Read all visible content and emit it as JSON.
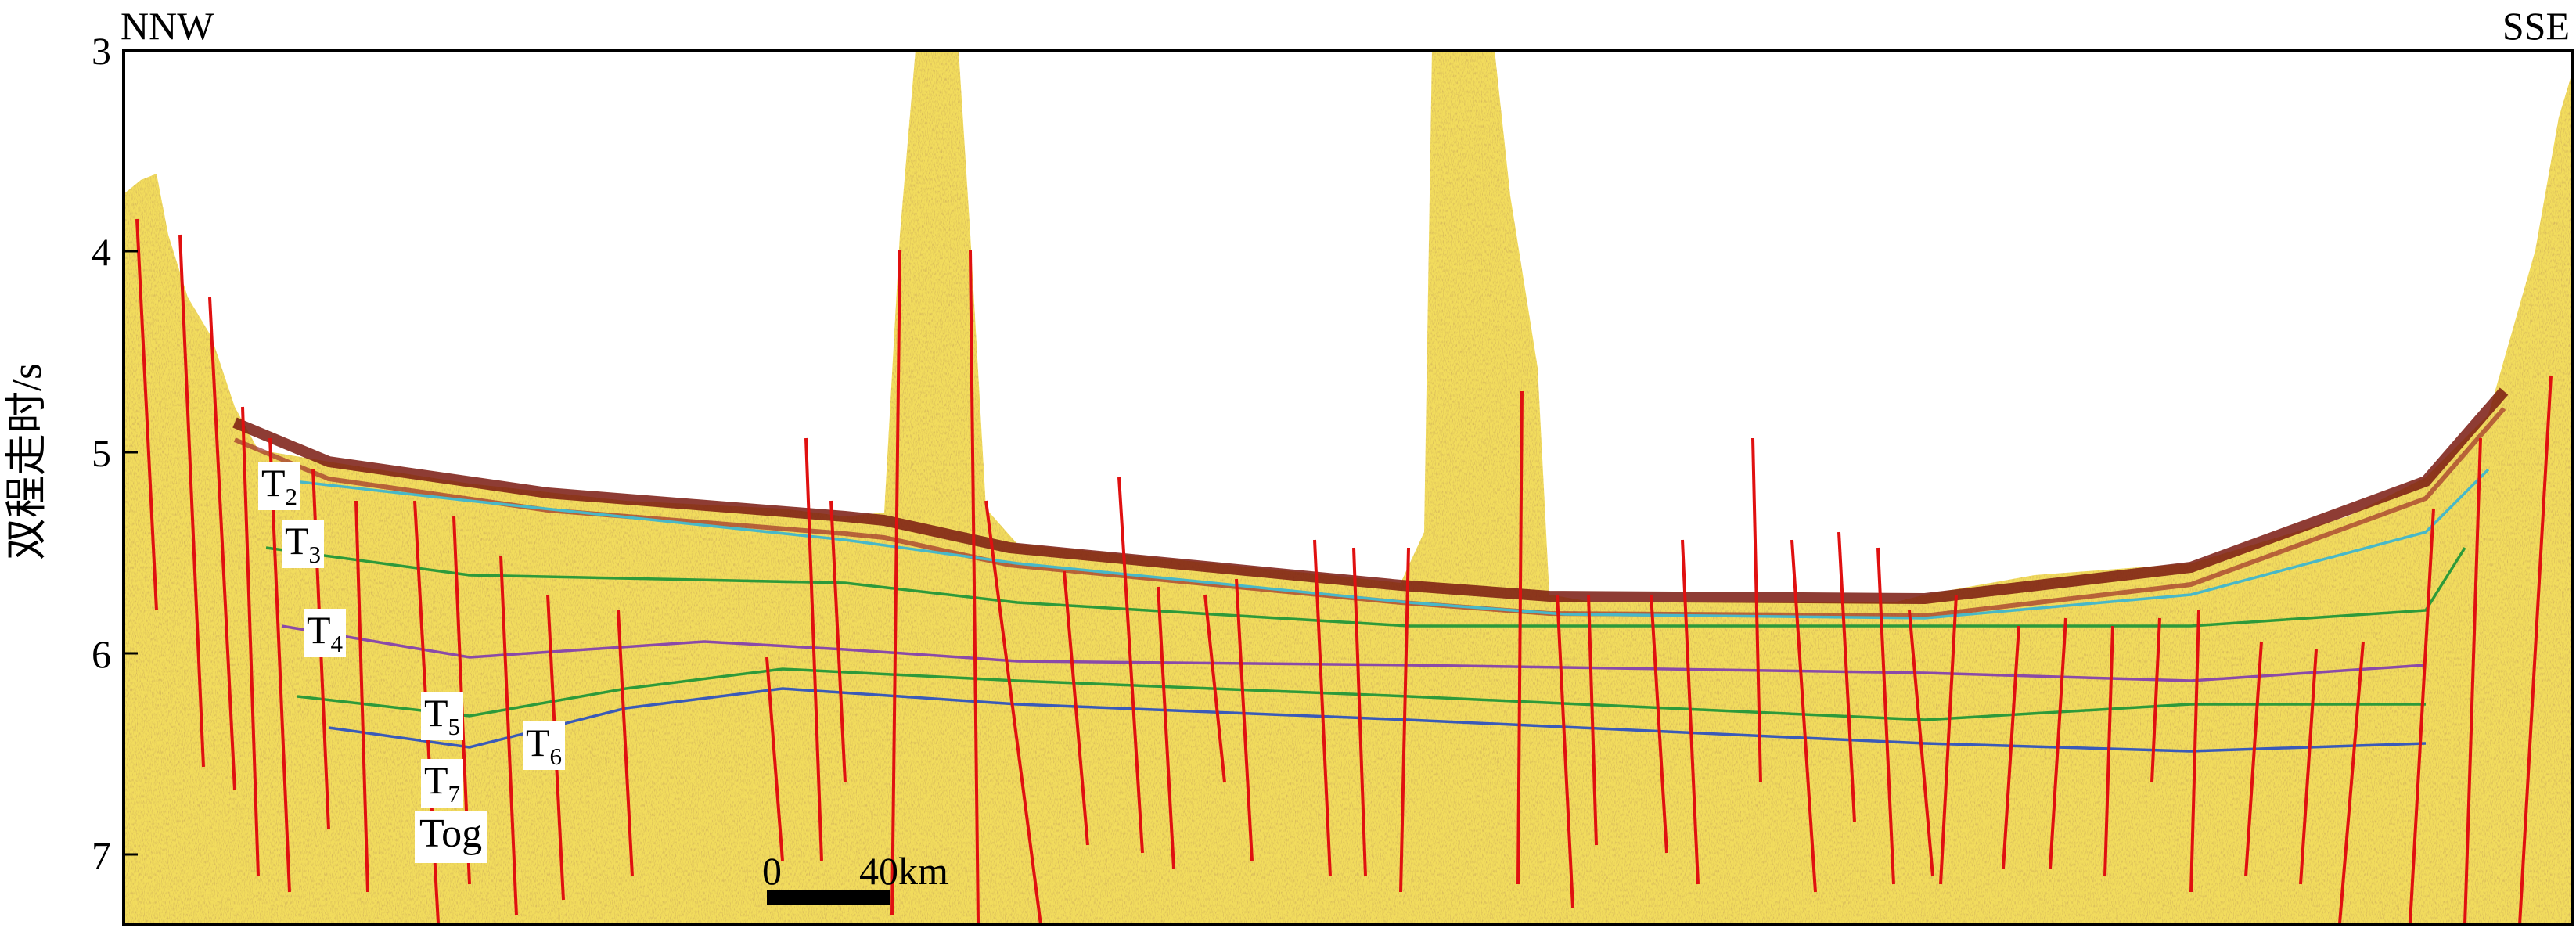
{
  "header": {
    "left_direction": "NNW",
    "right_direction": "SSE"
  },
  "y_axis": {
    "label": "双程走时/s",
    "ticks": [
      "3",
      "4",
      "5",
      "6",
      "7"
    ],
    "range": [
      3,
      7.35
    ]
  },
  "horizons": [
    {
      "id": "t2",
      "main": "T",
      "sub": "2"
    },
    {
      "id": "t3",
      "main": "T",
      "sub": "3"
    },
    {
      "id": "t4",
      "main": "T",
      "sub": "4"
    },
    {
      "id": "t5",
      "main": "T",
      "sub": "5"
    },
    {
      "id": "t6",
      "main": "T",
      "sub": "6"
    },
    {
      "id": "t7",
      "main": "T",
      "sub": "7"
    },
    {
      "id": "tog",
      "main": "Tog",
      "sub": ""
    }
  ],
  "scale_bar": {
    "start": "0",
    "end": "40km"
  },
  "colors": {
    "seismic_background": "#f2dc5d",
    "fault": "#e01010",
    "seafloor": "#7a1a10",
    "horizon_green": "#2e9a3a",
    "horizon_cyan": "#48b8c8",
    "horizon_purple": "#8a4aa8",
    "horizon_blue": "#3a5ab8"
  }
}
